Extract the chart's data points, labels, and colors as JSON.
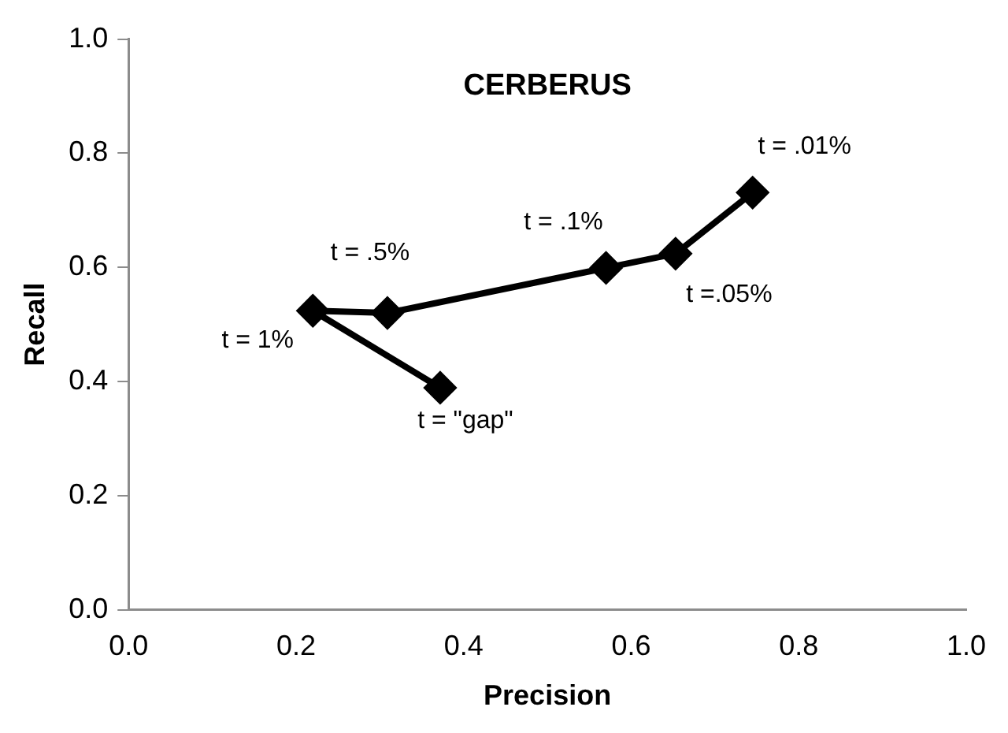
{
  "chart_data": {
    "type": "line",
    "title": "CERBERUS",
    "xlabel": "Precision",
    "ylabel": "Recall",
    "x": [
      0.745,
      0.653,
      0.57,
      0.309,
      0.22,
      0.372
    ],
    "series": [
      {
        "color": "#000000",
        "values": [
          0.731,
          0.624,
          0.599,
          0.52,
          0.524,
          0.389
        ]
      }
    ],
    "annotations": [
      {
        "text": "t = .01%",
        "x": 0.745,
        "y": 0.731
      },
      {
        "text": "t =.05%",
        "x": 0.653,
        "y": 0.624
      },
      {
        "text": "t = .1%",
        "x": 0.57,
        "y": 0.599
      },
      {
        "text": "t = .5%",
        "x": 0.309,
        "y": 0.52
      },
      {
        "text": "t = 1%",
        "x": 0.22,
        "y": 0.524
      },
      {
        "text": "t = \"gap\"",
        "x": 0.372,
        "y": 0.389
      }
    ],
    "xlim": [
      0,
      1
    ],
    "ylim": [
      0,
      1
    ],
    "xticks": [
      {
        "value": 0,
        "label": "0.0"
      },
      0.2,
      0.4,
      0.6,
      0.8,
      {
        "value": 1,
        "label": "1.0"
      }
    ],
    "yticks": [
      {
        "value": 0,
        "label": "0.0"
      },
      0.2,
      0.4,
      0.6,
      0.8,
      {
        "value": 1,
        "label": "1.0"
      }
    ],
    "grid": false,
    "legend": false,
    "marker": "diamond",
    "line_style": "solid"
  }
}
